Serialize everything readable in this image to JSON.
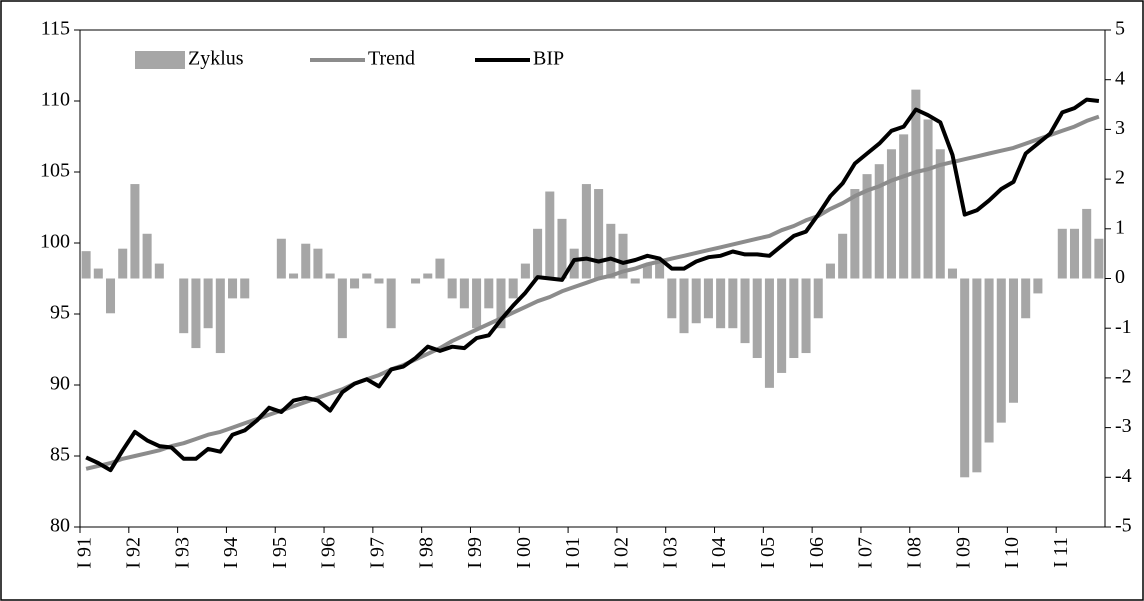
{
  "chart_data": {
    "type": "combo",
    "categories": [
      "I 91",
      null,
      null,
      null,
      "I 92",
      null,
      null,
      null,
      "I 93",
      null,
      null,
      null,
      "I 94",
      null,
      null,
      null,
      "I 95",
      null,
      null,
      null,
      "I 96",
      null,
      null,
      null,
      "I 97",
      null,
      null,
      null,
      "I 98",
      null,
      null,
      null,
      "I 99",
      null,
      null,
      null,
      "I 00",
      null,
      null,
      null,
      "I 01",
      null,
      null,
      null,
      "I 02",
      null,
      null,
      null,
      "I 03",
      null,
      null,
      null,
      "I 04",
      null,
      null,
      null,
      "I 05",
      null,
      null,
      null,
      "I 06",
      null,
      null,
      null,
      "I 07",
      null,
      null,
      null,
      "I 08",
      null,
      null,
      null,
      "I 09",
      null,
      null,
      null,
      "I 10",
      null,
      null,
      null,
      "I 11",
      null,
      null,
      null
    ],
    "series": [
      {
        "name": "Zyklus",
        "type": "bar",
        "axis": "y2",
        "color": "#a6a6a6",
        "values": [
          0.55,
          0.2,
          -0.7,
          0.6,
          1.9,
          0.9,
          0.3,
          0,
          -1.1,
          -1.4,
          -1.0,
          -1.5,
          -0.4,
          -0.4,
          0,
          0,
          0.8,
          0.1,
          0.7,
          0.6,
          0.1,
          -1.2,
          -0.2,
          0.1,
          -0.1,
          -1.0,
          0,
          -0.1,
          0.1,
          0.4,
          -0.4,
          -0.6,
          -1.0,
          -0.6,
          -1.0,
          -0.4,
          0.3,
          1.0,
          1.75,
          1.2,
          0.6,
          1.9,
          1.8,
          1.1,
          0.9,
          -0.1,
          0.3,
          0.4,
          -0.8,
          -1.1,
          -0.9,
          -0.8,
          -1.0,
          -1.0,
          -1.3,
          -1.6,
          -2.2,
          -1.9,
          -1.6,
          -1.5,
          -0.8,
          0.3,
          0.9,
          1.8,
          2.1,
          2.3,
          2.6,
          2.9,
          3.8,
          3.2,
          2.6,
          0.2,
          -4.0,
          -3.9,
          -3.3,
          -2.9,
          -2.5,
          -0.8,
          -0.3,
          0,
          1.0,
          1.0,
          1.4,
          0.8
        ]
      },
      {
        "name": "Trend",
        "type": "line",
        "color": "#8c8c8c",
        "values": [
          84.1,
          84.3,
          84.5,
          84.8,
          85.0,
          85.2,
          85.4,
          85.7,
          85.9,
          86.2,
          86.5,
          86.7,
          87.0,
          87.3,
          87.6,
          87.9,
          88.2,
          88.5,
          88.8,
          89.1,
          89.4,
          89.7,
          90.1,
          90.4,
          90.7,
          91.1,
          91.4,
          91.8,
          92.2,
          92.6,
          93.1,
          93.5,
          93.9,
          94.3,
          94.7,
          95.1,
          95.5,
          95.9,
          96.2,
          96.6,
          96.9,
          97.2,
          97.5,
          97.7,
          98.0,
          98.2,
          98.5,
          98.7,
          98.9,
          99.1,
          99.3,
          99.5,
          99.7,
          99.9,
          100.1,
          100.3,
          100.5,
          100.9,
          101.2,
          101.6,
          101.9,
          102.4,
          102.8,
          103.3,
          103.7,
          104.0,
          104.4,
          104.7,
          105.0,
          105.2,
          105.5,
          105.7,
          105.9,
          106.1,
          106.3,
          106.5,
          106.7,
          107.0,
          107.3,
          107.6,
          107.9,
          108.2,
          108.6,
          108.9
        ]
      },
      {
        "name": "BIP",
        "type": "line",
        "color": "#000000",
        "values": [
          84.9,
          84.5,
          84.0,
          85.4,
          86.7,
          86.1,
          85.7,
          85.6,
          84.8,
          84.8,
          85.5,
          85.3,
          86.5,
          86.8,
          87.5,
          88.4,
          88.1,
          88.9,
          89.1,
          88.9,
          88.2,
          89.5,
          90.1,
          90.4,
          89.9,
          91.1,
          91.3,
          91.9,
          92.7,
          92.4,
          92.7,
          92.6,
          93.3,
          93.5,
          94.6,
          95.6,
          96.5,
          97.6,
          97.5,
          97.4,
          98.8,
          98.9,
          98.7,
          98.9,
          98.6,
          98.8,
          99.1,
          98.9,
          98.2,
          98.2,
          98.7,
          99.0,
          99.1,
          99.4,
          99.2,
          99.2,
          99.1,
          99.8,
          100.5,
          100.8,
          102.0,
          103.3,
          104.2,
          105.6,
          106.3,
          107.0,
          107.9,
          108.2,
          109.4,
          109.0,
          108.5,
          106.2,
          102.0,
          102.3,
          103.0,
          103.8,
          104.3,
          106.3,
          107.0,
          107.7,
          109.2,
          109.5,
          110.1,
          110.0
        ]
      }
    ],
    "ylim": [
      80,
      115
    ],
    "yticks": [
      80,
      85,
      90,
      95,
      100,
      105,
      110,
      115
    ],
    "y2lim": [
      -5,
      5
    ],
    "y2ticks": [
      -5,
      -4,
      -3,
      -2,
      -1,
      0,
      1,
      2,
      3,
      4,
      5
    ]
  }
}
